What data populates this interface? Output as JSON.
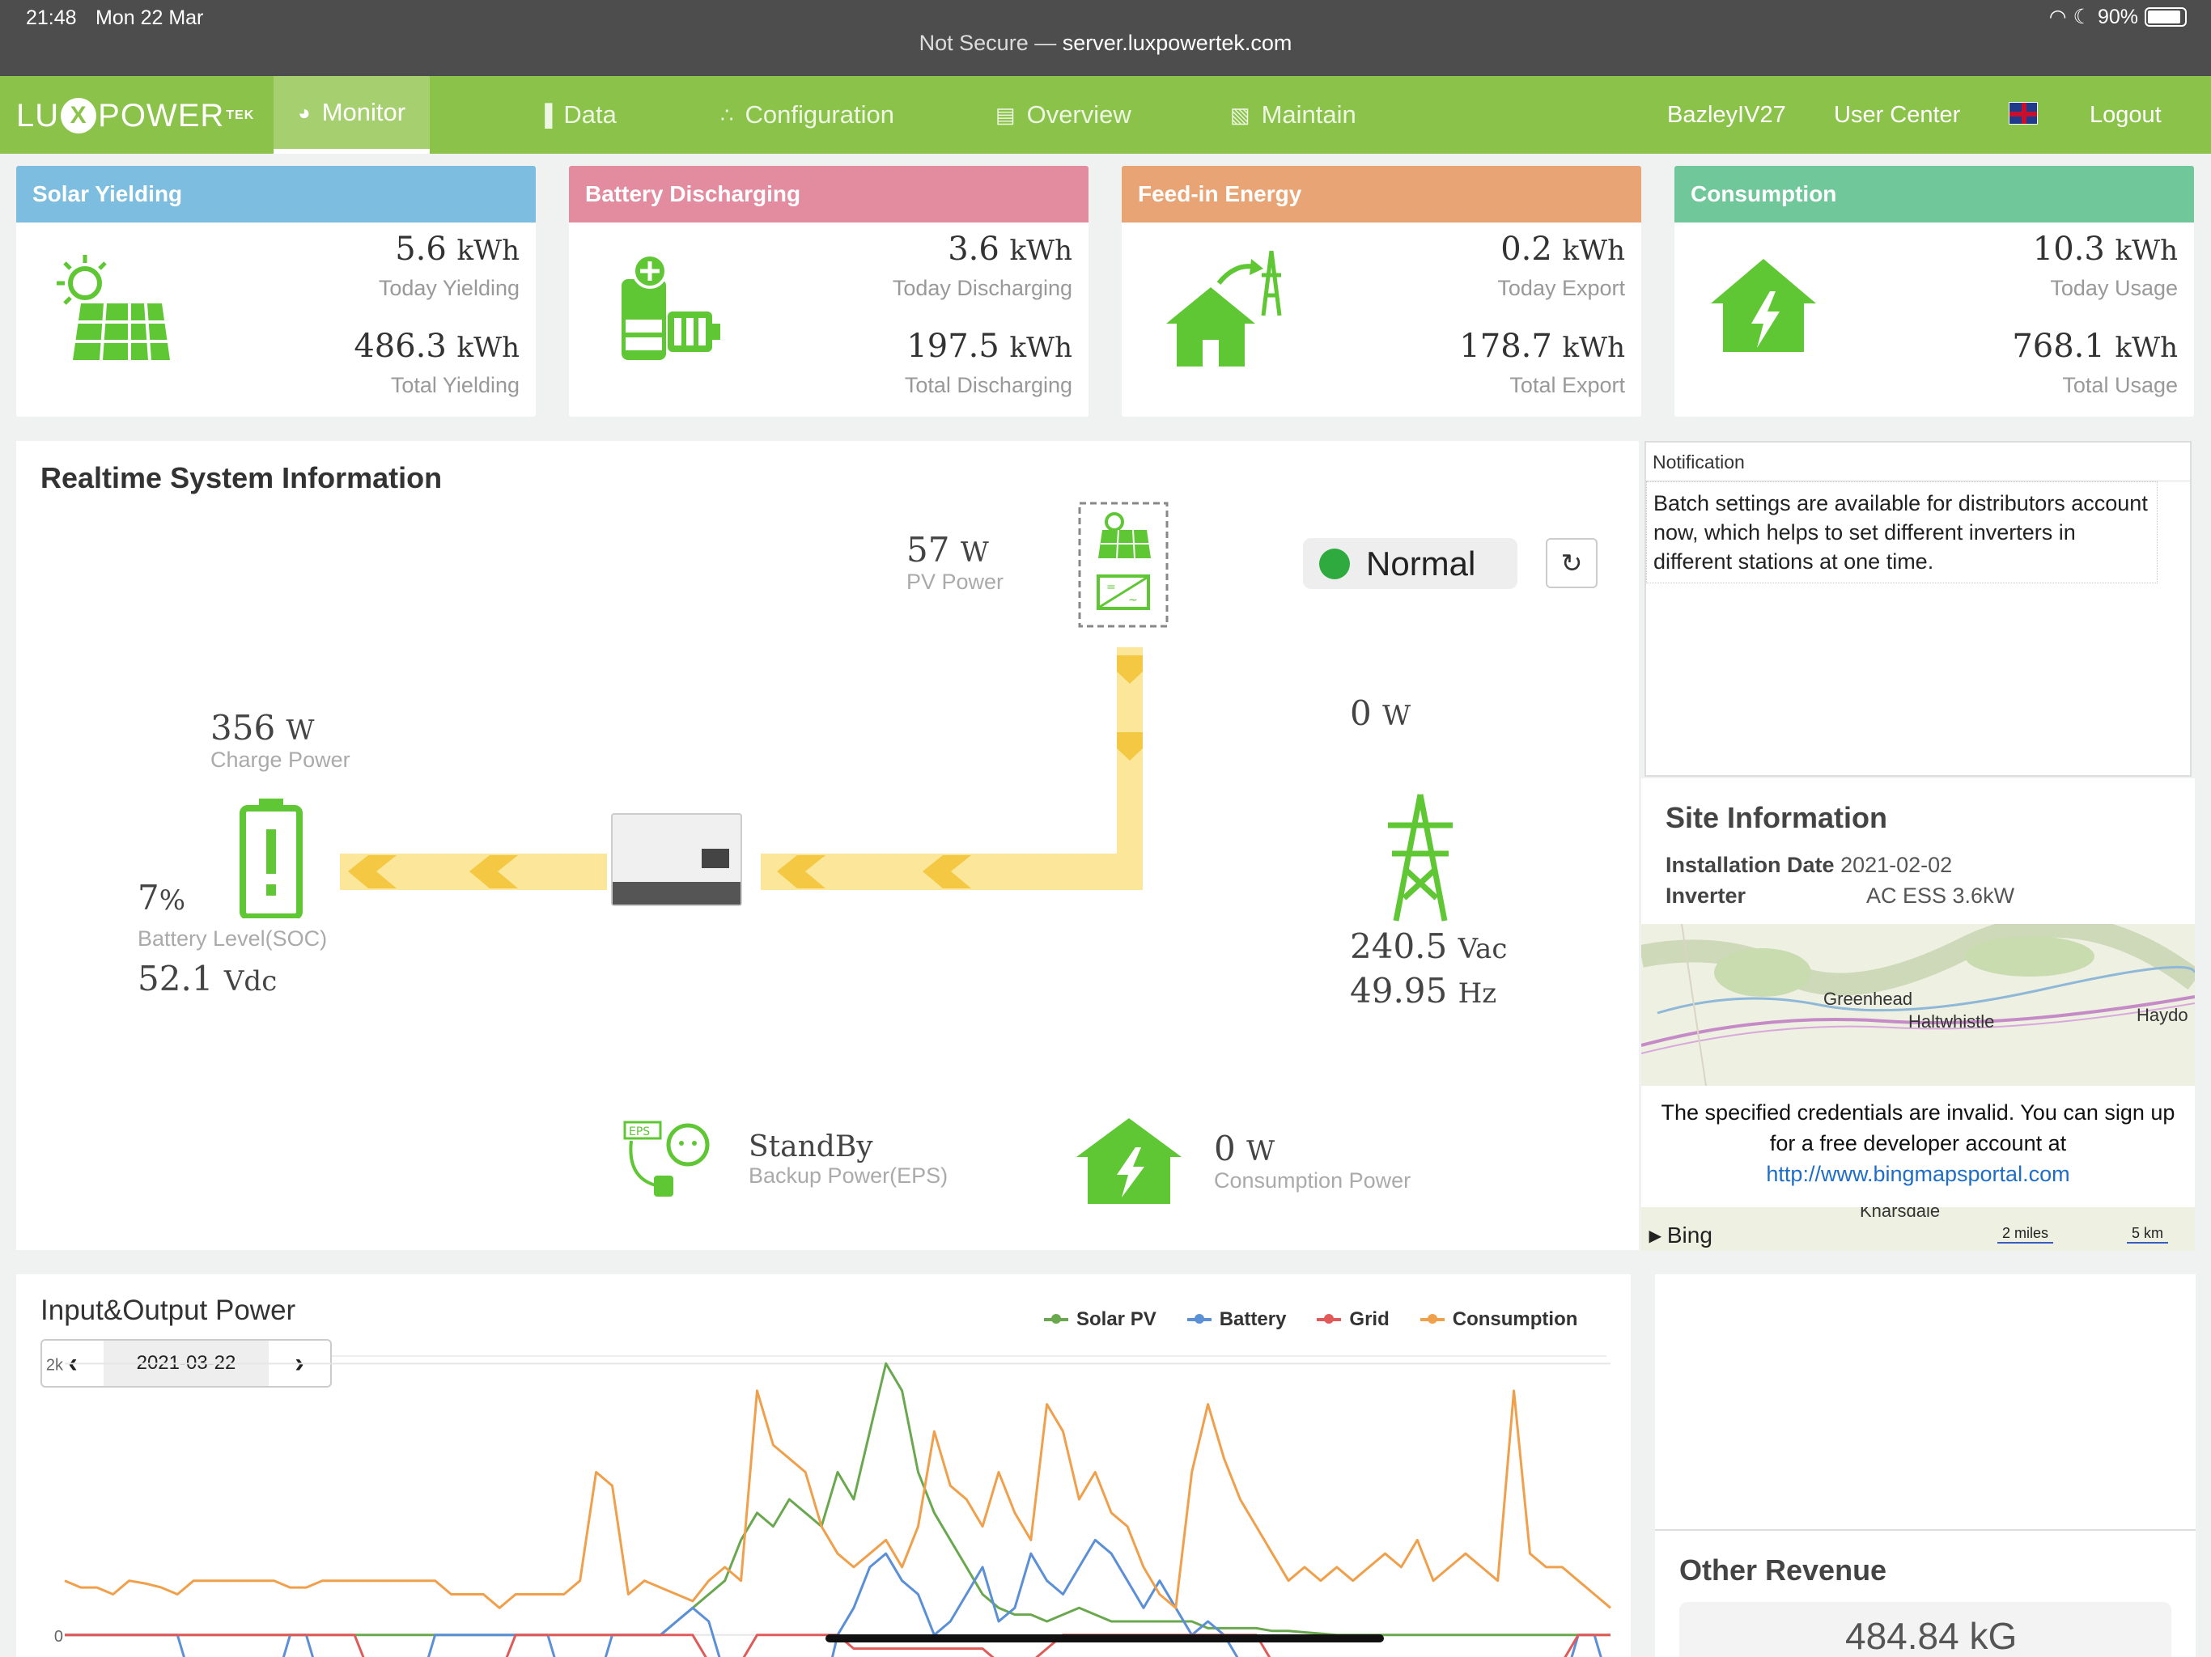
{
  "status_bar": {
    "time": "21:48",
    "date": "Mon 22 Mar",
    "security": "Not Secure —",
    "host": "server.luxpowertek.com",
    "battery_pct": "90%"
  },
  "nav": {
    "logo_text_left": "LU",
    "logo_text_x": "X",
    "logo_text_right": "POWER",
    "logo_sup": "TEK",
    "items": [
      {
        "label": "Monitor",
        "active": true
      },
      {
        "label": "Data"
      },
      {
        "label": "Configuration"
      },
      {
        "label": "Overview"
      },
      {
        "label": "Maintain"
      }
    ],
    "user": "BazleyIV27",
    "user_center": "User Center",
    "logout": "Logout"
  },
  "cards": [
    {
      "title": "Solar Yielding",
      "color": "#7cbde0",
      "today_value": "5.6",
      "today_unit": "kWh",
      "today_label": "Today Yielding",
      "total_value": "486.3",
      "total_unit": "kWh",
      "total_label": "Total Yielding"
    },
    {
      "title": "Battery Discharging",
      "color": "#e38b9f",
      "today_value": "3.6",
      "today_unit": "kWh",
      "today_label": "Today Discharging",
      "total_value": "197.5",
      "total_unit": "kWh",
      "total_label": "Total Discharging"
    },
    {
      "title": "Feed-in Energy",
      "color": "#e8a474",
      "today_value": "0.2",
      "today_unit": "kWh",
      "today_label": "Today Export",
      "total_value": "178.7",
      "total_unit": "kWh",
      "total_label": "Total Export"
    },
    {
      "title": "Consumption",
      "color": "#6fc79a",
      "today_value": "10.3",
      "today_unit": "kWh",
      "today_label": "Today Usage",
      "total_value": "768.1",
      "total_unit": "kWh",
      "total_label": "Total Usage"
    }
  ],
  "realtime": {
    "title": "Realtime System Information",
    "pv_power": "57",
    "pv_unit": "W",
    "pv_label": "PV Power",
    "status": "Normal",
    "charge_power": "356",
    "charge_unit": "W",
    "charge_label": "Charge Power",
    "soc": "7",
    "soc_unit": "%",
    "soc_label": "Battery Level(SOC)",
    "battery_voltage": "52.1",
    "battery_voltage_unit": "Vdc",
    "grid_power": "0",
    "grid_unit": "W",
    "grid_voltage": "240.5",
    "grid_voltage_unit": "Vac",
    "grid_freq": "49.95",
    "grid_freq_unit": "Hz",
    "eps_status": "StandBy",
    "eps_label": "Backup Power(EPS)",
    "eps_tag": "EPS",
    "consumption_power": "0",
    "consumption_unit": "W",
    "consumption_label": "Consumption Power"
  },
  "notification": {
    "title": "Notification",
    "text": "Batch settings are available for distributors account now, which helps to set different inverters in different stations at one time."
  },
  "site": {
    "title": "Site Information",
    "install_label": "Installation Date",
    "install_date": "2021-02-02",
    "inverter_label": "Inverter",
    "inverter": "AC ESS 3.6kW",
    "map_places": [
      "Greenhead",
      "Haltwhistle",
      "Haydo",
      "Knarsdale"
    ],
    "map_message": "The specified credentials are invalid. You can sign up for a free developer account at",
    "map_link": "http://www.bingmapsportal.com",
    "map_brand": "Bing",
    "scale_miles": "2 miles",
    "scale_km": "5 km"
  },
  "chart": {
    "title": "Input&Output Power",
    "date": "2021-03-22",
    "legend": [
      {
        "name": "Solar PV",
        "color": "#6aa84f"
      },
      {
        "name": "Battery",
        "color": "#5b8fd6"
      },
      {
        "name": "Grid",
        "color": "#e05a5a"
      },
      {
        "name": "Consumption",
        "color": "#f0a04b"
      }
    ]
  },
  "chart_data": {
    "type": "line",
    "title": "Input&Output Power",
    "y_ticks": [
      "2k",
      "0"
    ],
    "ylim": [
      -800,
      2300
    ],
    "grid": true,
    "legend_position": "top-right",
    "x": [
      0,
      1,
      2,
      3,
      4,
      5,
      6,
      7,
      8,
      9,
      10,
      11,
      12,
      13,
      14,
      15,
      16,
      17,
      18,
      19,
      20,
      21,
      22,
      23,
      24,
      25,
      26,
      27,
      28,
      29,
      30,
      31,
      32,
      33,
      34,
      35,
      36,
      37,
      38,
      39,
      40,
      41,
      42,
      43,
      44,
      45,
      46,
      47,
      48,
      49,
      50,
      51,
      52,
      53,
      54,
      55,
      56,
      57,
      58,
      59,
      60,
      61,
      62,
      63,
      64,
      65,
      66,
      67,
      68,
      69,
      70,
      71,
      72,
      73,
      74,
      75,
      76,
      77,
      78,
      79,
      80,
      81,
      82,
      83,
      84,
      85,
      86,
      87,
      88,
      89,
      90,
      91,
      92,
      93,
      94,
      95,
      96
    ],
    "series": [
      {
        "name": "Solar PV",
        "values": [
          0,
          0,
          0,
          0,
          0,
          0,
          0,
          0,
          0,
          0,
          0,
          0,
          0,
          0,
          0,
          0,
          0,
          0,
          0,
          0,
          0,
          0,
          0,
          0,
          0,
          0,
          0,
          0,
          0,
          0,
          0,
          0,
          0,
          0,
          0,
          0,
          0,
          0,
          100,
          200,
          300,
          400,
          700,
          900,
          800,
          1000,
          900,
          800,
          1200,
          1000,
          1500,
          2000,
          1800,
          1200,
          900,
          700,
          500,
          300,
          200,
          150,
          150,
          100,
          150,
          200,
          150,
          100,
          100,
          100,
          100,
          100,
          100,
          50,
          50,
          50,
          50,
          30,
          30,
          20,
          10,
          0,
          0,
          0,
          0,
          0,
          0,
          0,
          0,
          0,
          0,
          0,
          0,
          0,
          0,
          0,
          0,
          0,
          0
        ]
      },
      {
        "name": "Battery",
        "values": [
          0,
          0,
          0,
          0,
          0,
          0,
          0,
          0,
          -400,
          -400,
          -400,
          -400,
          -400,
          -400,
          0,
          0,
          -400,
          -400,
          -400,
          -400,
          -400,
          -400,
          -400,
          0,
          0,
          0,
          0,
          0,
          0,
          0,
          0,
          -400,
          -400,
          -400,
          0,
          0,
          0,
          0,
          100,
          200,
          100,
          -300,
          -500,
          -600,
          -400,
          -200,
          -300,
          -500,
          0,
          200,
          500,
          600,
          400,
          300,
          0,
          100,
          300,
          500,
          100,
          200,
          600,
          400,
          300,
          500,
          700,
          600,
          400,
          200,
          400,
          200,
          0,
          100,
          0,
          -200,
          -300,
          -400,
          -400,
          -400,
          -400,
          -400,
          -400,
          -400,
          -400,
          -400,
          -400,
          -400,
          -400,
          -400,
          -400,
          -400,
          -400,
          -400,
          -400,
          -400,
          0,
          0,
          -400
        ]
      },
      {
        "name": "Grid",
        "values": [
          0,
          0,
          0,
          0,
          0,
          0,
          0,
          0,
          0,
          0,
          0,
          0,
          0,
          0,
          0,
          0,
          0,
          0,
          0,
          -300,
          -300,
          -300,
          -200,
          -300,
          -300,
          -300,
          -300,
          -300,
          0,
          0,
          0,
          0,
          0,
          0,
          0,
          0,
          0,
          0,
          0,
          0,
          -200,
          -300,
          -200,
          0,
          0,
          0,
          0,
          0,
          0,
          -100,
          -100,
          -100,
          -100,
          -100,
          -100,
          -100,
          -100,
          -100,
          -200,
          -300,
          -200,
          -100,
          0,
          0,
          0,
          0,
          0,
          0,
          0,
          0,
          0,
          0,
          0,
          0,
          0,
          -200,
          -300,
          -400,
          -300,
          -200,
          -300,
          -200,
          -300,
          -300,
          -200,
          -300,
          -300,
          -200,
          -200,
          -300,
          -300,
          -200,
          -300,
          -200,
          0,
          0,
          0
        ]
      },
      {
        "name": "Consumption",
        "values": [
          400,
          350,
          350,
          300,
          400,
          380,
          350,
          300,
          400,
          400,
          400,
          400,
          400,
          400,
          350,
          350,
          400,
          400,
          400,
          400,
          400,
          400,
          400,
          400,
          300,
          300,
          300,
          200,
          300,
          300,
          300,
          300,
          400,
          1200,
          1100,
          300,
          400,
          350,
          300,
          250,
          400,
          500,
          400,
          1800,
          1400,
          1300,
          1200,
          800,
          600,
          500,
          600,
          700,
          500,
          800,
          1500,
          1100,
          1000,
          800,
          1200,
          900,
          700,
          1700,
          1500,
          1000,
          1200,
          900,
          800,
          500,
          300,
          200,
          1200,
          1700,
          1300,
          1000,
          800,
          600,
          400,
          500,
          400,
          500,
          400,
          500,
          600,
          500,
          700,
          400,
          500,
          600,
          500,
          400,
          1800,
          600,
          500,
          500,
          400,
          300,
          200
        ]
      }
    ]
  },
  "other_revenue": {
    "title": "Other Revenue",
    "value": "484.84 kG"
  }
}
